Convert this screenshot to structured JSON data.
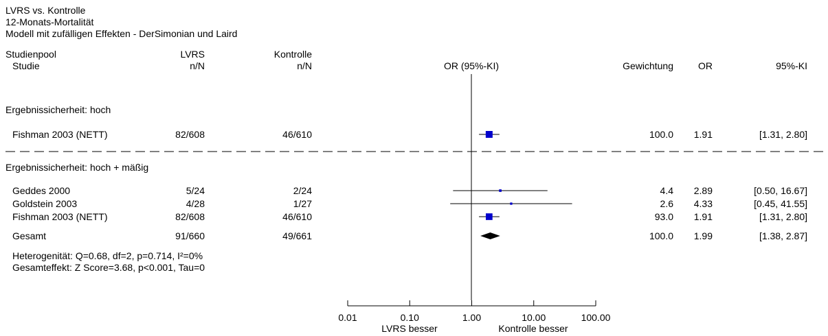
{
  "header": {
    "title": "LVRS vs. Kontrolle",
    "subtitle": "12-Monats-Mortalität",
    "model": "Modell mit zufälligen Effekten - DerSimonian und Laird"
  },
  "columns": {
    "study_pool": "Studienpool",
    "study": "Studie",
    "group1": "LVRS",
    "group1_unit": "n/N",
    "group2": "Kontrolle",
    "group2_unit": "n/N",
    "effect": "OR (95%-KI)",
    "weight": "Gewichtung",
    "or": "OR",
    "ci": "95%-KI"
  },
  "colors": {
    "square": "#0000cc",
    "diamond": "#000000",
    "line": "#000000"
  },
  "chart_data": {
    "type": "forest",
    "x_scale": "log",
    "xlim": [
      0.01,
      100
    ],
    "x_ticks": [
      0.01,
      0.1,
      1,
      10,
      100
    ],
    "x_tick_labels": [
      "0.01",
      "0.10",
      "1.00",
      "10.00",
      "100.00"
    ],
    "null_line": 1,
    "x_left_label": "LVRS besser",
    "x_right_label": "Kontrolle besser",
    "groups": [
      {
        "label": "Ergebnissicherheit: hoch",
        "studies": [
          {
            "name": "Fishman 2003 (NETT)",
            "n1": "82/608",
            "n2": "46/610",
            "or": 1.91,
            "lo": 1.31,
            "hi": 2.8,
            "weight": 100.0,
            "weight_text": "100.0",
            "or_text": "1.91",
            "ci_text": "[1.31, 2.80]"
          }
        ]
      },
      {
        "label": "Ergebnissicherheit: hoch + mäßig",
        "studies": [
          {
            "name": "Geddes 2000",
            "n1": "5/24",
            "n2": "2/24",
            "or": 2.89,
            "lo": 0.5,
            "hi": 16.67,
            "weight": 4.4,
            "weight_text": "4.4",
            "or_text": "2.89",
            "ci_text": "[0.50, 16.67]"
          },
          {
            "name": "Goldstein 2003",
            "n1": "4/28",
            "n2": "1/27",
            "or": 4.33,
            "lo": 0.45,
            "hi": 41.55,
            "weight": 2.6,
            "weight_text": "2.6",
            "or_text": "4.33",
            "ci_text": "[0.45, 41.55]"
          },
          {
            "name": "Fishman 2003 (NETT)",
            "n1": "82/608",
            "n2": "46/610",
            "or": 1.91,
            "lo": 1.31,
            "hi": 2.8,
            "weight": 93.0,
            "weight_text": "93.0",
            "or_text": "1.91",
            "ci_text": "[1.31, 2.80]"
          }
        ],
        "total": {
          "name": "Gesamt",
          "n1": "91/660",
          "n2": "49/661",
          "or": 1.99,
          "lo": 1.38,
          "hi": 2.87,
          "weight": 100.0,
          "weight_text": "100.0",
          "or_text": "1.99",
          "ci_text": "[1.38, 2.87]"
        },
        "heterogeneity": "Heterogenität: Q=0.68, df=2, p=0.714, I²=0%",
        "overall_effect": "Gesamteffekt: Z Score=3.68, p<0.001, Tau=0"
      }
    ]
  }
}
